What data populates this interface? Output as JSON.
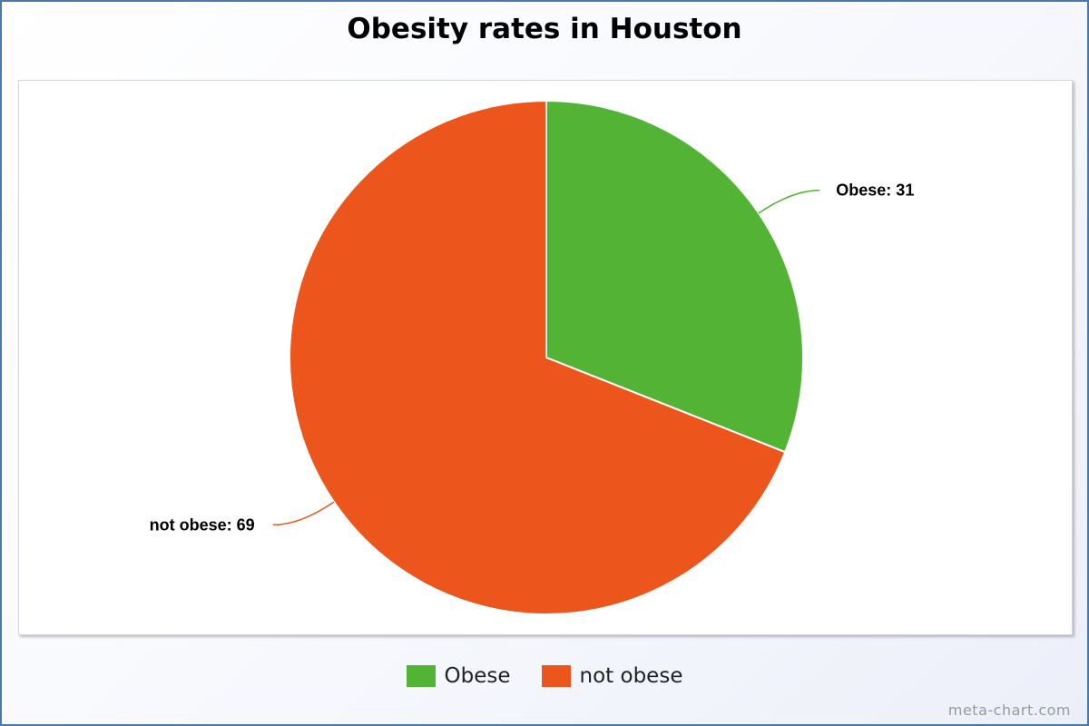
{
  "chart_data": {
    "type": "pie",
    "title": "Obesity rates in Houston",
    "categories": [
      "Obese",
      "not obese"
    ],
    "values": [
      31,
      69
    ],
    "colors": [
      "#52b335",
      "#ec561d"
    ],
    "data_labels": [
      "Obese: 31",
      "not obese: 69"
    ],
    "legend": {
      "placement": "bottom",
      "entries": [
        "Obese",
        "not obese"
      ]
    }
  },
  "footer": {
    "credit": "meta-chart.com"
  }
}
